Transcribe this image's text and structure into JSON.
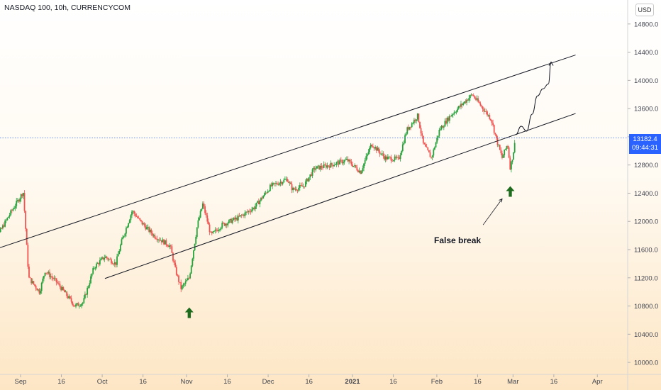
{
  "header": {
    "title": "NASDAQ 100, 10h, CURRENCYCOM",
    "currency": "USD"
  },
  "current_price": {
    "value": "13182.4",
    "countdown": "09:44:31",
    "color": "#2962ff"
  },
  "annotation": {
    "text": "False break"
  },
  "colors": {
    "up": "#26a23b",
    "down": "#ef5350",
    "arrow": "#1e6b1e",
    "line": "#131722"
  },
  "chart_data": {
    "type": "candlestick",
    "title": "NASDAQ 100, 10h, CURRENCYCOM",
    "ylim": [
      9830,
      15140
    ],
    "y_ticks": [
      "10000.0",
      "10400.0",
      "10800.0",
      "11200.0",
      "11600.0",
      "12000.0",
      "12400.0",
      "12800.0",
      "13200.0",
      "13600.0",
      "14000.0",
      "14400.0",
      "14800.0"
    ],
    "x_ticks": [
      {
        "label": "Sep",
        "date": "2020-09-01"
      },
      {
        "label": "16",
        "date": "2020-09-16"
      },
      {
        "label": "Oct",
        "date": "2020-10-01"
      },
      {
        "label": "16",
        "date": "2020-10-16"
      },
      {
        "label": "Nov",
        "date": "2020-11-01"
      },
      {
        "label": "16",
        "date": "2020-11-16"
      },
      {
        "label": "Dec",
        "date": "2020-12-01"
      },
      {
        "label": "16",
        "date": "2020-12-16"
      },
      {
        "label": "2021",
        "date": "2021-01-01",
        "bold": true
      },
      {
        "label": "16",
        "date": "2021-01-16"
      },
      {
        "label": "Feb",
        "date": "2021-02-01"
      },
      {
        "label": "16",
        "date": "2021-02-16"
      },
      {
        "label": "Mar",
        "date": "2021-03-01"
      },
      {
        "label": "16",
        "date": "2021-03-16"
      },
      {
        "label": "Apr",
        "date": "2021-04-01"
      }
    ],
    "price_path": [
      [
        "2020-08-20",
        11550
      ],
      [
        "2020-08-28",
        12100
      ],
      [
        "2020-09-02",
        12420
      ],
      [
        "2020-09-04",
        11200
      ],
      [
        "2020-09-08",
        11000
      ],
      [
        "2020-09-10",
        11300
      ],
      [
        "2020-09-14",
        11150
      ],
      [
        "2020-09-18",
        10950
      ],
      [
        "2020-09-21",
        10800
      ],
      [
        "2020-09-24",
        10850
      ],
      [
        "2020-09-28",
        11350
      ],
      [
        "2020-10-02",
        11500
      ],
      [
        "2020-10-06",
        11400
      ],
      [
        "2020-10-08",
        11700
      ],
      [
        "2020-10-12",
        12150
      ],
      [
        "2020-10-15",
        12000
      ],
      [
        "2020-10-20",
        11800
      ],
      [
        "2020-10-26",
        11650
      ],
      [
        "2020-10-28",
        11300
      ],
      [
        "2020-10-30",
        11050
      ],
      [
        "2020-11-02",
        11200
      ],
      [
        "2020-11-05",
        11950
      ],
      [
        "2020-11-07",
        12250
      ],
      [
        "2020-11-10",
        11800
      ],
      [
        "2020-11-14",
        11950
      ],
      [
        "2020-11-20",
        12050
      ],
      [
        "2020-11-26",
        12200
      ],
      [
        "2020-12-02",
        12500
      ],
      [
        "2020-12-08",
        12600
      ],
      [
        "2020-12-10",
        12450
      ],
      [
        "2020-12-14",
        12500
      ],
      [
        "2020-12-18",
        12750
      ],
      [
        "2020-12-24",
        12800
      ],
      [
        "2020-12-30",
        12870
      ],
      [
        "2021-01-04",
        12700
      ],
      [
        "2021-01-08",
        13100
      ],
      [
        "2021-01-13",
        12900
      ],
      [
        "2021-01-18",
        12880
      ],
      [
        "2021-01-21",
        13300
      ],
      [
        "2021-01-25",
        13500
      ],
      [
        "2021-01-27",
        13100
      ],
      [
        "2021-01-30",
        12900
      ],
      [
        "2021-02-02",
        13300
      ],
      [
        "2021-02-06",
        13500
      ],
      [
        "2021-02-10",
        13650
      ],
      [
        "2021-02-14",
        13800
      ],
      [
        "2021-02-17",
        13650
      ],
      [
        "2021-02-21",
        13450
      ],
      [
        "2021-02-23",
        13150
      ],
      [
        "2021-02-25",
        12900
      ],
      [
        "2021-02-27",
        13100
      ],
      [
        "2021-02-28",
        12750
      ],
      [
        "2021-03-01",
        12950
      ],
      [
        "2021-03-02",
        13182
      ]
    ],
    "channel_upper": [
      [
        "2020-08-20",
        11570
      ],
      [
        "2021-03-24",
        14360
      ]
    ],
    "channel_lower": [
      [
        "2020-10-02",
        11190
      ],
      [
        "2021-03-24",
        13530
      ]
    ],
    "current_price": 13182.4,
    "projection": [
      [
        "2021-03-02",
        13230
      ],
      [
        "2021-03-04",
        13350
      ],
      [
        "2021-03-06",
        13280
      ],
      [
        "2021-03-08",
        13520
      ],
      [
        "2021-03-10",
        13780
      ],
      [
        "2021-03-12",
        13880
      ],
      [
        "2021-03-14",
        13950
      ],
      [
        "2021-03-15",
        14260
      ]
    ],
    "markers": [
      {
        "type": "arrow-up",
        "date": "2020-11-02",
        "price": 10700
      },
      {
        "type": "arrow-up",
        "date": "2021-02-28",
        "price": 12420
      }
    ],
    "annotation_arrow": {
      "from": [
        "2021-02-18",
        11950
      ],
      "to": [
        "2021-02-25",
        12320
      ]
    },
    "annotation_text": "False break",
    "grid": false,
    "legend": "none"
  }
}
